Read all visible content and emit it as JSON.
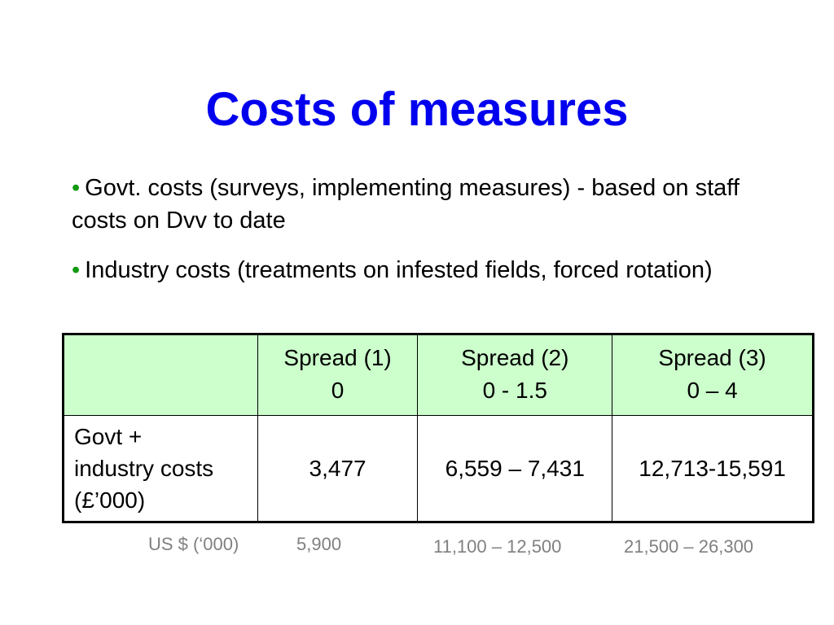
{
  "slide": {
    "title": "Costs of measures",
    "bullets": [
      {
        "marker": "•",
        "text": "Govt. costs (surveys, implementing measures) - based on staff costs on Dvv to date"
      },
      {
        "marker": "•",
        "text": "Industry costs (treatments on infested fields, forced rotation)"
      }
    ],
    "colors": {
      "title": "#0000ee",
      "bullet_marker": "#119911",
      "header_fill": "#ccffcc",
      "usd_text": "#808080"
    }
  },
  "table": {
    "columns": [
      {
        "line1": "",
        "line2": ""
      },
      {
        "line1": "Spread (1)",
        "line2": "0"
      },
      {
        "line1": "Spread (2)",
        "line2": "0 - 1.5"
      },
      {
        "line1": "Spread (3)",
        "line2": "0 – 4"
      }
    ],
    "rows": [
      {
        "label": "Govt + industry costs (£’000)",
        "label_lines": [
          "Govt +",
          "industry costs",
          "(£’000)"
        ],
        "values": [
          "3,477",
          "6,559 – 7,431",
          "12,713-15,591"
        ]
      }
    ]
  },
  "usd_row": {
    "label": "US $  (‘000)",
    "values": [
      "5,900",
      "11,100 – 12,500",
      "21,500 – 26,300"
    ]
  }
}
